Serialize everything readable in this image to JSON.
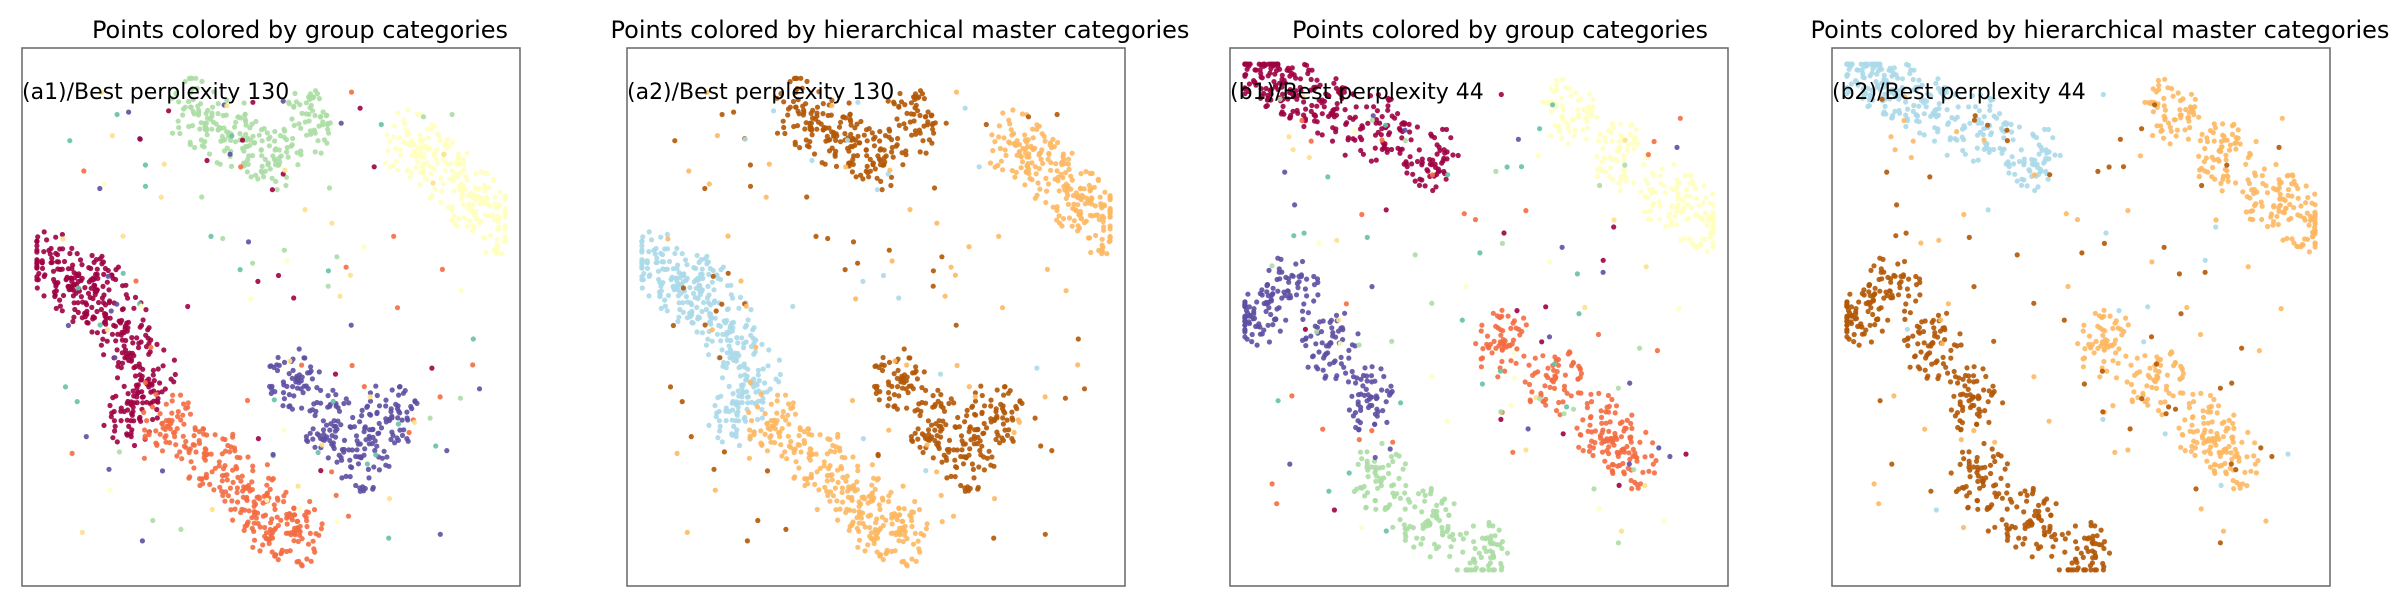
{
  "figure": {
    "panels": [
      {
        "title": "Points colored by group categories",
        "annotation": "(a1)/Best perplexity 130",
        "coloring": "group",
        "layout": "a"
      },
      {
        "title": "Points colored by hierarchical master categories",
        "annotation": "(a2)/Best perplexity 130",
        "coloring": "master",
        "layout": "a"
      },
      {
        "title": "Points colored by group categories",
        "annotation": "(b1)/Best perplexity 44",
        "coloring": "group",
        "layout": "b"
      },
      {
        "title": "Points colored by hierarchical master categories",
        "annotation": "(b2)/Best perplexity 44",
        "coloring": "master",
        "layout": "b"
      }
    ]
  },
  "colors": {
    "group_palette": [
      "#9e0142",
      "#f46d43",
      "#fee08b",
      "#ffffbf",
      "#abdda4",
      "#66c2a5",
      "#5e4fa2"
    ],
    "master_palette": [
      "#abd9e9",
      "#fdb863",
      "#b35806"
    ],
    "frame": "#666666"
  },
  "chart_data": [
    {
      "type": "scatter",
      "title": "Points colored by group categories",
      "annotation": "(a1)/Best perplexity 130",
      "perplexity": 130,
      "xlabel": "",
      "ylabel": "",
      "axes": "hidden",
      "grid": false,
      "legend": "none",
      "clusters": [
        {
          "group": 0,
          "master": 0,
          "color": "#9e0142",
          "x": [
            0.06,
            0.12,
            0.2,
            0.25,
            0.22,
            0.15
          ],
          "y": [
            0.4,
            0.45,
            0.52,
            0.6,
            0.68,
            0.45
          ]
        },
        {
          "group": 1,
          "master": 1,
          "color": "#f46d43",
          "x": [
            0.3,
            0.38,
            0.45,
            0.5,
            0.55
          ],
          "y": [
            0.7,
            0.76,
            0.82,
            0.88,
            0.9
          ]
        },
        {
          "group": 4,
          "master": 2,
          "color": "#abdda4",
          "x": [
            0.35,
            0.42,
            0.5,
            0.58
          ],
          "y": [
            0.12,
            0.16,
            0.2,
            0.14
          ]
        },
        {
          "group": 3,
          "master": 1,
          "color": "#ffffbf",
          "x": [
            0.78,
            0.84,
            0.9,
            0.95
          ],
          "y": [
            0.18,
            0.22,
            0.28,
            0.32
          ]
        },
        {
          "group": 6,
          "master": 2,
          "color": "#5e4fa2",
          "x": [
            0.55,
            0.62,
            0.68,
            0.74
          ],
          "y": [
            0.62,
            0.7,
            0.76,
            0.68
          ]
        }
      ]
    },
    {
      "type": "scatter",
      "title": "Points colored by hierarchical master categories",
      "annotation": "(a2)/Best perplexity 130",
      "perplexity": 130,
      "xlabel": "",
      "ylabel": "",
      "axes": "hidden",
      "grid": false,
      "legend": "none",
      "same_points_as": "(a1)"
    },
    {
      "type": "scatter",
      "title": "Points colored by group categories",
      "annotation": "(b1)/Best perplexity 44",
      "perplexity": 44,
      "xlabel": "",
      "ylabel": "",
      "axes": "hidden",
      "grid": false,
      "legend": "none",
      "clusters": [
        {
          "group": 0,
          "master": 0,
          "color": "#9e0142",
          "x": [
            0.06,
            0.12,
            0.2,
            0.3,
            0.4
          ],
          "y": [
            0.04,
            0.08,
            0.12,
            0.15,
            0.2
          ]
        },
        {
          "group": 6,
          "master": 2,
          "color": "#5e4fa2",
          "x": [
            0.05,
            0.12,
            0.2,
            0.28
          ],
          "y": [
            0.5,
            0.45,
            0.55,
            0.65
          ]
        },
        {
          "group": 4,
          "master": 2,
          "color": "#abdda4",
          "x": [
            0.3,
            0.4,
            0.5
          ],
          "y": [
            0.8,
            0.88,
            0.94
          ]
        },
        {
          "group": 1,
          "master": 1,
          "color": "#f46d43",
          "x": [
            0.55,
            0.65,
            0.75,
            0.8
          ],
          "y": [
            0.55,
            0.62,
            0.7,
            0.76
          ]
        },
        {
          "group": 3,
          "master": 1,
          "color": "#ffffbf",
          "x": [
            0.68,
            0.78,
            0.88,
            0.95
          ],
          "y": [
            0.12,
            0.2,
            0.28,
            0.32
          ]
        }
      ]
    },
    {
      "type": "scatter",
      "title": "Points colored by hierarchical master categories",
      "annotation": "(b2)/Best perplexity 44",
      "perplexity": 44,
      "xlabel": "",
      "ylabel": "",
      "axes": "hidden",
      "grid": false,
      "legend": "none",
      "same_points_as": "(b1)"
    }
  ]
}
